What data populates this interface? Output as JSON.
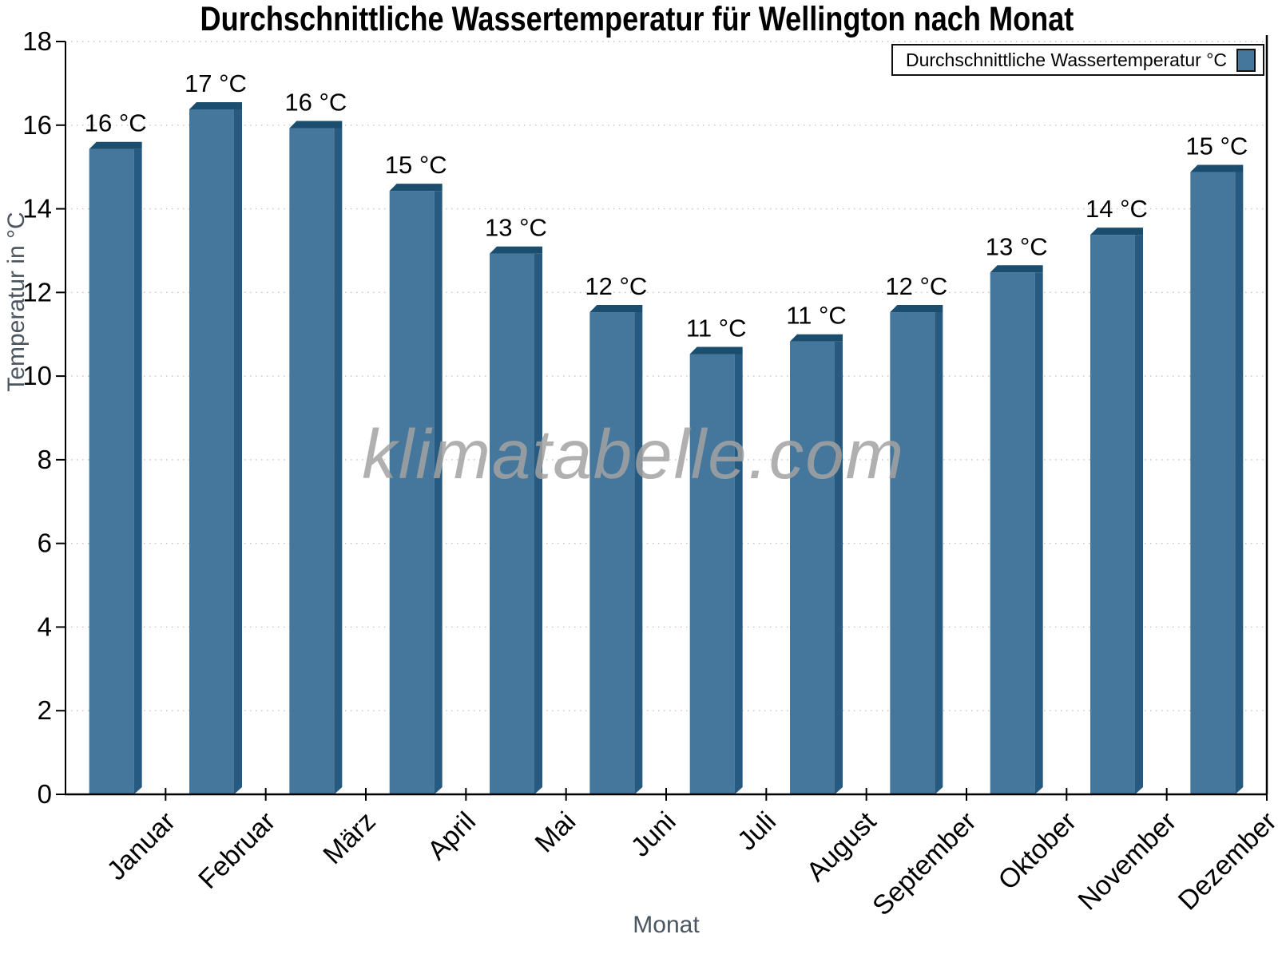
{
  "watermark": "klimatabelle.com",
  "chart_data": {
    "type": "bar",
    "title": "Durchschnittliche Wassertemperatur für Wellington nach Monat",
    "xlabel": "Monat",
    "ylabel": "Temperatur in °C",
    "categories": [
      "Januar",
      "Februar",
      "März",
      "April",
      "Mai",
      "Juni",
      "Juli",
      "August",
      "September",
      "Oktober",
      "November",
      "Dezember"
    ],
    "values": [
      15.6,
      16.55,
      16.1,
      14.6,
      13.1,
      11.7,
      10.7,
      11.0,
      11.7,
      12.65,
      13.55,
      15.05
    ],
    "bar_labels": [
      "16 °C",
      "17 °C",
      "16 °C",
      "15 °C",
      "13 °C",
      "12 °C",
      "11 °C",
      "11 °C",
      "12 °C",
      "13 °C",
      "14 °C",
      "15 °C"
    ],
    "ylim": [
      0,
      18
    ],
    "yticks": [
      0,
      2,
      4,
      6,
      8,
      10,
      12,
      14,
      16,
      18
    ],
    "grid": true,
    "legend": {
      "label": "Durchschnittliche Wassertemperatur °C",
      "position": "top-right"
    },
    "colors": {
      "bar_fill": "#44779b",
      "bar_top": "#1b4d6e",
      "bar_side": "#265a80",
      "grid": "#c3c3c3",
      "axis": "#000000",
      "axis_title": "#4a5560",
      "tick_text": "#000000"
    }
  }
}
